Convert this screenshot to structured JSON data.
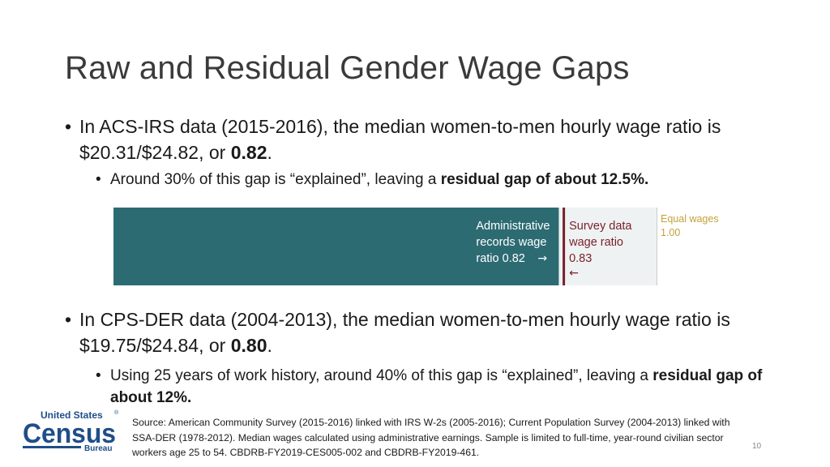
{
  "slide": {
    "title": "Raw and Residual Gender Wage Gaps",
    "bullet1": {
      "bullet": "•",
      "text_a": "In ACS-IRS data (2015-2016), the median women-to-men hourly wage ratio is $20.31/$24.82, or ",
      "text_bold": "0.82",
      "text_b": ".",
      "sub": {
        "bullet": "•",
        "text_a": "Around 30% of this gap is “explained”, leaving a ",
        "text_bold": "residual gap of about 12.5%."
      }
    },
    "bullet2": {
      "bullet": "•",
      "text_a": "In CPS-DER data (2004-2013), the median women-to-men hourly wage ratio is $19.75/$24.84, or ",
      "text_bold": "0.80",
      "text_b": ".",
      "sub": {
        "bullet": "•",
        "text_a": "Using 25 years of work history, around 40% of this gap is “explained”, leaving a ",
        "text_bold": "residual gap of about 12%."
      }
    },
    "source": "Source: American Community Survey (2015-2016) linked with IRS W-2s (2005-2016); Current Population Survey (2004-2013) linked with SSA-DER (1978-2012). Median wages calculated using administrative earnings. Sample is limited to full-time, year-round civilian sector workers age 25 to 54. CBDRB-FY2019-CES005-002 and CBDRB-FY2019-461.",
    "page_number": "10",
    "logo": {
      "line1": "United States",
      "registered": "®",
      "line2": "Census",
      "line3": "Bureau"
    }
  },
  "colors": {
    "bar_fill": "#2d6b73",
    "survey_line": "#7a1f2b",
    "equal_line": "#cccccc",
    "equal_text": "#c5a13a",
    "logo_blue": "#1f4e89"
  },
  "chart_data": {
    "type": "bar",
    "orientation": "horizontal",
    "xlim": [
      0,
      1.0
    ],
    "values": [
      0.82
    ],
    "markers": [
      {
        "label_lines": [
          "Administrative",
          "records wage",
          "ratio 0.82"
        ],
        "arrow": "→",
        "value": 0.82
      },
      {
        "label_lines": [
          "Survey data",
          "wage ratio",
          "0.83"
        ],
        "arrow": "←",
        "value": 0.83
      },
      {
        "label_lines": [
          "Equal wages",
          "1.00"
        ],
        "value": 1.0
      }
    ]
  }
}
